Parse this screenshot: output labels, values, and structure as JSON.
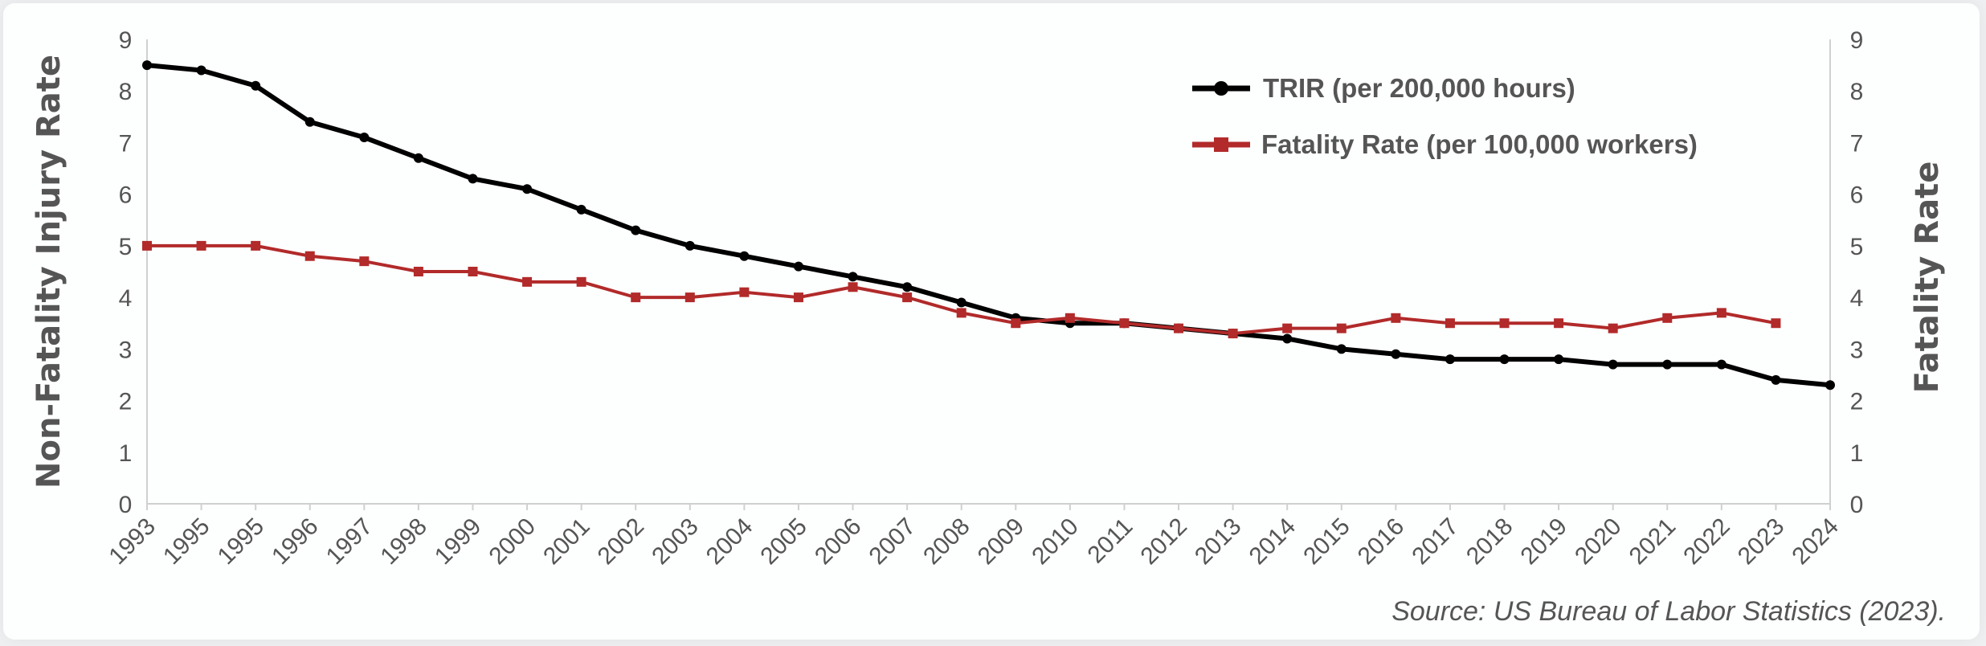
{
  "chart_data": {
    "type": "line",
    "title": "",
    "x": [
      "1993",
      "1995",
      "1995",
      "1996",
      "1997",
      "1998",
      "1999",
      "2000",
      "2001",
      "2002",
      "2003",
      "2004",
      "2005",
      "2006",
      "2007",
      "2008",
      "2009",
      "2010",
      "2011",
      "2012",
      "2013",
      "2014",
      "2015",
      "2016",
      "2017",
      "2018",
      "2019",
      "2020",
      "2021",
      "2022",
      "2023",
      "2024"
    ],
    "series": [
      {
        "name": "TRIR (per 200,000 hours)",
        "axis": "left",
        "color": "#000000",
        "marker": "circle",
        "values": [
          8.5,
          8.4,
          8.1,
          7.4,
          7.1,
          6.7,
          6.3,
          6.1,
          5.7,
          5.3,
          5.0,
          4.8,
          4.6,
          4.4,
          4.2,
          3.9,
          3.6,
          3.5,
          3.5,
          3.4,
          3.3,
          3.2,
          3.0,
          2.9,
          2.8,
          2.8,
          2.8,
          2.7,
          2.7,
          2.7,
          2.4,
          2.3
        ]
      },
      {
        "name": "Fatality Rate (per 100,000 workers)",
        "axis": "right",
        "color": "#b22a2a",
        "marker": "square",
        "values": [
          5.0,
          5.0,
          5.0,
          4.8,
          4.7,
          4.5,
          4.5,
          4.3,
          4.3,
          4.0,
          4.0,
          4.1,
          4.0,
          4.2,
          4.0,
          3.7,
          3.5,
          3.6,
          3.5,
          3.4,
          3.3,
          3.4,
          3.4,
          3.6,
          3.5,
          3.5,
          3.5,
          3.4,
          3.6,
          3.7,
          3.5,
          null
        ]
      }
    ],
    "ylabel": "Non-Fatality Injury Rate",
    "y2label": "Fatality Rate",
    "ylim": [
      0,
      9
    ],
    "y2lim": [
      0,
      9
    ],
    "yticks": [
      "0",
      "1",
      "2",
      "3",
      "4",
      "5",
      "6",
      "7",
      "8",
      "9"
    ],
    "grid": false,
    "legend_position": "top-right"
  },
  "source": "Source: US Bureau of Labor Statistics (2023)."
}
